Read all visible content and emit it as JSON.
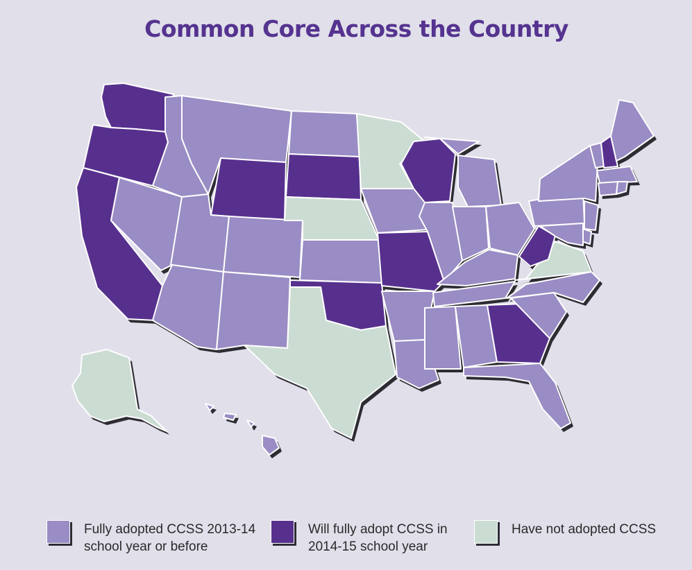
{
  "title": "Common Core Across the Country",
  "colors": {
    "background": "#e0dfea",
    "title": "#55338f",
    "adopted": "#9a8cc4",
    "will_adopt": "#57308e",
    "not_adopted": "#cbdcd3",
    "shadow": "#2e2c33"
  },
  "legend": [
    {
      "category": "adopted",
      "label": "Fully adopted CCSS 2013-14\nschool year or before"
    },
    {
      "category": "will_adopt",
      "label": "Will fully adopt CCSS in\n2014-15 school year"
    },
    {
      "category": "not_adopted",
      "label": "Have not adopted CCSS"
    }
  ],
  "states": {
    "WA": "will_adopt",
    "OR": "will_adopt",
    "CA": "will_adopt",
    "ID": "adopted",
    "NV": "adopted",
    "MT": "adopted",
    "WY": "will_adopt",
    "UT": "adopted",
    "AZ": "adopted",
    "CO": "adopted",
    "NM": "adopted",
    "ND": "adopted",
    "SD": "will_adopt",
    "NE": "not_adopted",
    "KS": "adopted",
    "OK": "will_adopt",
    "TX": "not_adopted",
    "MN": "not_adopted",
    "IA": "adopted",
    "MO": "will_adopt",
    "AR": "adopted",
    "LA": "adopted",
    "WI": "will_adopt",
    "IL": "adopted",
    "MI": "adopted",
    "IN": "adopted",
    "OH": "adopted",
    "KY": "adopted",
    "TN": "adopted",
    "MS": "adopted",
    "AL": "adopted",
    "GA": "will_adopt",
    "FL": "adopted",
    "SC": "adopted",
    "NC": "adopted",
    "VA": "not_adopted",
    "WV": "will_adopt",
    "PA": "adopted",
    "NY": "adopted",
    "VT": "adopted",
    "NH": "will_adopt",
    "ME": "adopted",
    "MA": "adopted",
    "CT": "adopted",
    "RI": "adopted",
    "NJ": "adopted",
    "DE": "adopted",
    "MD": "adopted",
    "AK": "not_adopted",
    "HI": "adopted"
  }
}
